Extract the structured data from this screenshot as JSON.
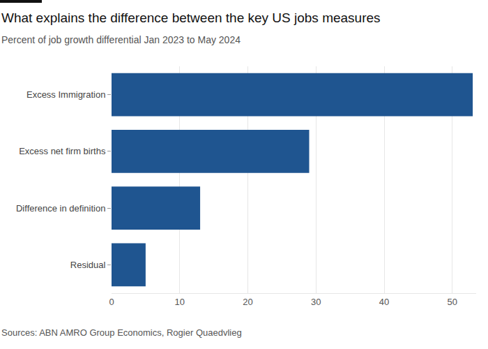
{
  "chart_data": {
    "type": "bar",
    "orientation": "horizontal",
    "title": "What explains the difference between the key US jobs measures",
    "subtitle": "Percent of job growth differential Jan 2023 to May 2024",
    "source": "Sources: ABN AMRO Group Economics, Rogier Quaedvlieg",
    "categories": [
      "Excess Immigration",
      "Excess net firm births",
      "Difference in definition",
      "Residual"
    ],
    "values": [
      53,
      29,
      13,
      5
    ],
    "color": "#1f5590",
    "xlim": [
      0,
      53.5
    ],
    "xticks": [
      0,
      10,
      20,
      30,
      40,
      50
    ],
    "grid": true
  }
}
